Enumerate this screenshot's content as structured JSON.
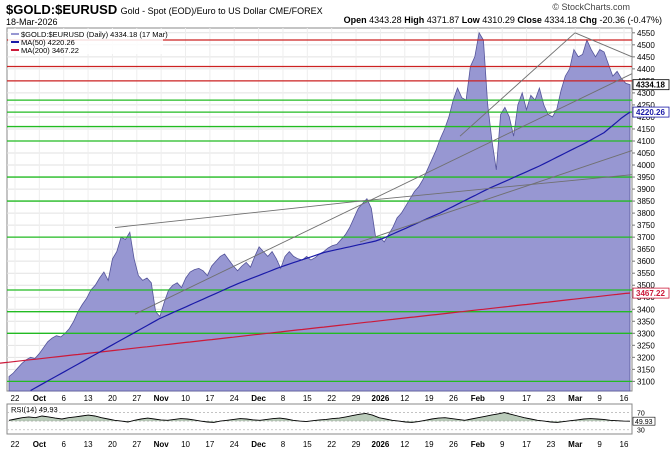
{
  "header": {
    "symbol": "$GOLD:$EURUSD",
    "description": "Gold - Spot (EOD)/Euro to US Dollar  CME/FOREX",
    "date": "18-Mar-2026",
    "credit": "© StockCharts.com",
    "ohlc": {
      "open_label": "Open",
      "open": "4343.28",
      "high_label": "High",
      "high": "4371.87",
      "low_label": "Low",
      "low": "4310.29",
      "close_label": "Close",
      "close": "4334.18",
      "chg_label": "Chg",
      "chg": "-20.36 (-0.47%)"
    }
  },
  "legend": {
    "main": "$GOLD:$EURUSD (Daily) 4334.18 (17 Mar)",
    "ma50": "MA(50) 4220.26",
    "ma200": "MA(200) 3467.22",
    "rsi": "RSI(14) 49.93"
  },
  "colors": {
    "area_fill": "#9797d2",
    "area_line": "#54549a",
    "ma50": "#1a1aa8",
    "ma200": "#cc1a3a",
    "hline_green": "#22bb22",
    "hline_red": "#cc2222",
    "trendline": "#707070",
    "rsi_fill": "#3a6a3a"
  },
  "chart_data": {
    "type": "area",
    "y_axis": {
      "min": 3060,
      "max": 4570,
      "step": 50,
      "ticks": [
        "3100",
        "3150",
        "3200",
        "3250",
        "3300",
        "3350",
        "3400",
        "3450",
        "3500",
        "3550",
        "3600",
        "3650",
        "3700",
        "3750",
        "3800",
        "3850",
        "3900",
        "3950",
        "4000",
        "4050",
        "4100",
        "4150",
        "4200",
        "4250",
        "4300",
        "4350",
        "4400",
        "4450",
        "4500",
        "4550"
      ]
    },
    "x_axis": {
      "labels": [
        "22",
        "Oct",
        "6",
        "13",
        "20",
        "27",
        "Nov",
        "10",
        "17",
        "24",
        "Dec",
        "8",
        "15",
        "22",
        "29",
        "2026",
        "12",
        "19",
        "26",
        "Feb",
        "9",
        "17",
        "23",
        "Mar",
        "9",
        "16"
      ],
      "bold_labels": [
        "Oct",
        "Nov",
        "Dec",
        "2026",
        "Feb",
        "Mar"
      ]
    },
    "price": [
      3120,
      3135,
      3155,
      3175,
      3190,
      3200,
      3195,
      3215,
      3240,
      3265,
      3280,
      3290,
      3285,
      3300,
      3320,
      3350,
      3390,
      3420,
      3445,
      3480,
      3500,
      3530,
      3555,
      3520,
      3610,
      3640,
      3700,
      3690,
      3720,
      3610,
      3540,
      3520,
      3530,
      3510,
      3390,
      3370,
      3430,
      3480,
      3500,
      3510,
      3490,
      3530,
      3555,
      3565,
      3570,
      3560,
      3540,
      3580,
      3600,
      3620,
      3630,
      3605,
      3580,
      3560,
      3580,
      3595,
      3575,
      3620,
      3660,
      3640,
      3620,
      3640,
      3610,
      3570,
      3620,
      3640,
      3620,
      3610,
      3605,
      3620,
      3605,
      3615,
      3630,
      3640,
      3655,
      3665,
      3670,
      3690,
      3710,
      3740,
      3780,
      3820,
      3840,
      3860,
      3820,
      3700,
      3700,
      3680,
      3710,
      3740,
      3780,
      3800,
      3830,
      3860,
      3890,
      3910,
      3940,
      3980,
      4020,
      4060,
      4110,
      4150,
      4200,
      4270,
      4320,
      4280,
      4270,
      4410,
      4450,
      4550,
      4520,
      4250,
      4100,
      3980,
      4210,
      4240,
      4200,
      4120,
      4250,
      4300,
      4230,
      4290,
      4270,
      4320,
      4250,
      4210,
      4200,
      4230,
      4310,
      4370,
      4400,
      4480,
      4450,
      4460,
      4520,
      4480,
      4450,
      4480,
      4470,
      4420,
      4370,
      4390,
      4360,
      4340,
      4334.18
    ],
    "ma50": [
      3005,
      3012,
      3020,
      3028,
      3036,
      3044,
      3053,
      3062,
      3072,
      3082,
      3092,
      3102,
      3112,
      3122,
      3132,
      3142,
      3152,
      3162,
      3172,
      3182,
      3192,
      3202,
      3212,
      3222,
      3232,
      3242,
      3252,
      3262,
      3272,
      3282,
      3292,
      3302,
      3312,
      3322,
      3332,
      3342,
      3352,
      3362,
      3370,
      3378,
      3386,
      3394,
      3402,
      3410,
      3418,
      3426,
      3434,
      3442,
      3450,
      3458,
      3466,
      3474,
      3482,
      3490,
      3498,
      3506,
      3513,
      3520,
      3527,
      3534,
      3541,
      3548,
      3555,
      3562,
      3569,
      3576,
      3582,
      3588,
      3594,
      3600,
      3606,
      3612,
      3618,
      3624,
      3630,
      3636,
      3640,
      3644,
      3648,
      3652,
      3656,
      3660,
      3664,
      3668,
      3672,
      3676,
      3680,
      3684,
      3690,
      3697,
      3705,
      3713,
      3721,
      3729,
      3737,
      3745,
      3753,
      3761,
      3769,
      3777,
      3785,
      3793,
      3801,
      3810,
      3819,
      3828,
      3837,
      3846,
      3855,
      3864,
      3873,
      3882,
      3891,
      3900,
      3908,
      3916,
      3924,
      3932,
      3940,
      3948,
      3956,
      3964,
      3972,
      3980,
      3988,
      3996,
      4005,
      4014,
      4023,
      4032,
      4041,
      4050,
      4059,
      4068,
      4077,
      4086,
      4095,
      4105,
      4115,
      4125,
      4135,
      4150,
      4165,
      4180,
      4195,
      4208,
      4220.26
    ],
    "ma200": [
      3050,
      3052,
      3054,
      3056,
      3058,
      3060,
      3062,
      3064,
      3066,
      3068,
      3070,
      3072,
      3074,
      3076,
      3078,
      3080,
      3082,
      3084,
      3086,
      3088,
      3090,
      3092,
      3094,
      3096,
      3098,
      3100,
      3102,
      3104,
      3106,
      3108,
      3110,
      3112,
      3114,
      3116,
      3118,
      3120,
      3122,
      3124,
      3126,
      3128,
      3130,
      3132,
      3134,
      3136,
      3138,
      3140,
      3142,
      3144,
      3146,
      3148,
      3150,
      3152,
      3154,
      3156,
      3158,
      3160,
      3162,
      3164,
      3166,
      3168,
      3170,
      3172,
      3174,
      3176,
      3178,
      3180,
      3182,
      3184,
      3186,
      3188,
      3190,
      3192,
      3194,
      3196,
      3198,
      3200,
      3202,
      3204,
      3206,
      3208,
      3210,
      3212,
      3214,
      3216,
      3218,
      3220,
      3222,
      3224,
      3226,
      3228,
      3230,
      3232,
      3234,
      3236,
      3238,
      3240,
      3242,
      3244,
      3246,
      3248,
      3250,
      3252,
      3254,
      3256,
      3258,
      3260,
      3262,
      3264,
      3266,
      3268,
      3270,
      3272,
      3274,
      3276,
      3278,
      3280,
      3282,
      3284,
      3286,
      3288,
      3290,
      3292,
      3294,
      3296,
      3298,
      3300,
      3302,
      3304,
      3306,
      3308,
      3310,
      3312,
      3314,
      3316,
      3318,
      3320,
      3322,
      3324,
      3326,
      3328,
      3330,
      3332,
      3334,
      3336,
      3338,
      3340,
      3342,
      3344,
      3346,
      3348,
      3350,
      3352,
      3354,
      3356,
      3358,
      3360,
      3362,
      3364,
      3366,
      3368,
      3370,
      3372,
      3374,
      3376,
      3378,
      3380,
      3382,
      3384,
      3386,
      3388,
      3390,
      3392,
      3394,
      3396,
      3398,
      3400,
      3402,
      3404,
      3406,
      3408,
      3410,
      3412,
      3414,
      3416,
      3418,
      3420,
      3422,
      3424,
      3426,
      3428,
      3430,
      3432,
      3434,
      3436,
      3438,
      3440,
      3442,
      3444,
      3446,
      3448,
      3450,
      3452,
      3454,
      3456,
      3458,
      3460,
      3462,
      3464,
      3466,
      3467.22
    ],
    "horizontal_levels": {
      "green": [
        3100,
        3300,
        3390,
        3480,
        3700,
        3850,
        3950,
        4100,
        4160,
        4220,
        4270
      ],
      "red": [
        4350,
        4410,
        4520
      ]
    },
    "price_tag": "4334.18",
    "ma50_tag": "4220.26",
    "ma200_tag": "3467.22",
    "rsi": {
      "name": "RSI(14)",
      "value": "49.93",
      "levels": [
        "70",
        "50",
        "30"
      ],
      "values": [
        52,
        55,
        58,
        60,
        58,
        62,
        60,
        57,
        55,
        58,
        60,
        62,
        64,
        62,
        58,
        55,
        52,
        50,
        48,
        52,
        55,
        57,
        55,
        53,
        52,
        54,
        56,
        55,
        53,
        50,
        48,
        47,
        50,
        52,
        54,
        56,
        55,
        53,
        52,
        54,
        56,
        57,
        55,
        52,
        50,
        49,
        51,
        53,
        54,
        56,
        57,
        60,
        63,
        66,
        68,
        64,
        58,
        55,
        52,
        50,
        48,
        47,
        49,
        52,
        55,
        57,
        58,
        56,
        54,
        52,
        55,
        58,
        61,
        64,
        67,
        70,
        66,
        62,
        58,
        55,
        52,
        50,
        48,
        47,
        49,
        51,
        53,
        55,
        56,
        55,
        54,
        52,
        51,
        50,
        49.93
      ]
    }
  }
}
